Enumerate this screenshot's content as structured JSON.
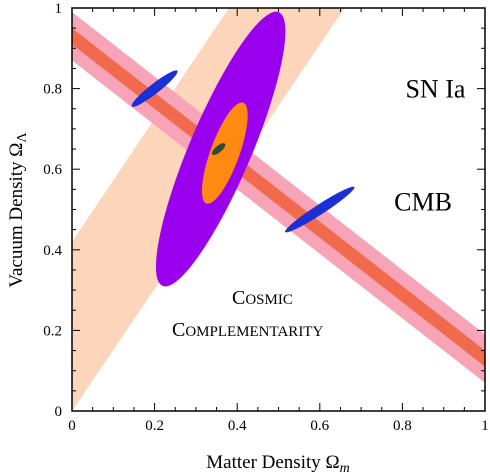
{
  "chart_data": {
    "type": "contour",
    "xlabel": "Matter Density Ω",
    "xlabel_sub": "m",
    "ylabel": "Vacuum Density Ω",
    "ylabel_sub": "Λ",
    "xlim": [
      0,
      1
    ],
    "ylim": [
      0,
      1
    ],
    "xticks": [
      "0",
      "0.2",
      "0.4",
      "0.6",
      "0.8",
      "1"
    ],
    "yticks": [
      "0",
      "0.2",
      "0.4",
      "0.6",
      "0.8",
      "1"
    ],
    "grid": false,
    "regions": [
      {
        "id": "sn-ia-band",
        "color": "#fcd5bb",
        "polygon": [
          [
            0,
            0
          ],
          [
            0,
            0.42
          ],
          [
            0.38,
            1.0
          ],
          [
            0.66,
            1.0
          ]
        ]
      },
      {
        "id": "cmb-outer",
        "color": "#f7a3b8",
        "polygon": [
          [
            0,
            0.99
          ],
          [
            0,
            0.87
          ],
          [
            1.0,
            0.07
          ],
          [
            1.0,
            0.19
          ]
        ]
      },
      {
        "id": "cmb-inner",
        "color": "#f26a4d",
        "polygon": [
          [
            0,
            0.95
          ],
          [
            0,
            0.91
          ],
          [
            1.0,
            0.11
          ],
          [
            1.0,
            0.15
          ]
        ]
      },
      {
        "id": "cmb-contour-blue-1",
        "color": "#1a2fd6",
        "ellipse": {
          "cx": 0.2,
          "cy": 0.8,
          "rx": 0.07,
          "ry": 0.012,
          "angle_deg": 38
        }
      },
      {
        "id": "cmb-contour-blue-2",
        "color": "#1a2fd6",
        "ellipse": {
          "cx": 0.6,
          "cy": 0.5,
          "rx": 0.1,
          "ry": 0.012,
          "angle_deg": 33
        }
      },
      {
        "id": "combined-outer",
        "color": "#9a00ee",
        "ellipse": {
          "cx": 0.36,
          "cy": 0.65,
          "rx": 0.36,
          "ry": 0.075,
          "angle_deg": 67
        }
      },
      {
        "id": "combined-inner",
        "color": "#ff8a12",
        "ellipse": {
          "cx": 0.37,
          "cy": 0.64,
          "rx": 0.13,
          "ry": 0.035,
          "angle_deg": 70
        }
      },
      {
        "id": "combined-core",
        "color": "#2f4a36",
        "ellipse": {
          "cx": 0.355,
          "cy": 0.65,
          "rx": 0.02,
          "ry": 0.008,
          "angle_deg": 40
        }
      }
    ],
    "annotations": [
      {
        "id": "sn-ia-label",
        "text": "SN Ia",
        "x": 0.88,
        "y": 0.8
      },
      {
        "id": "cmb-label",
        "text": "CMB",
        "x": 0.85,
        "y": 0.52
      }
    ],
    "complementarity": {
      "line1": {
        "cap": "C",
        "rest": "OSMIC"
      },
      "line2": {
        "cap": "C",
        "rest": "OMPLEMENTARITY"
      }
    }
  }
}
